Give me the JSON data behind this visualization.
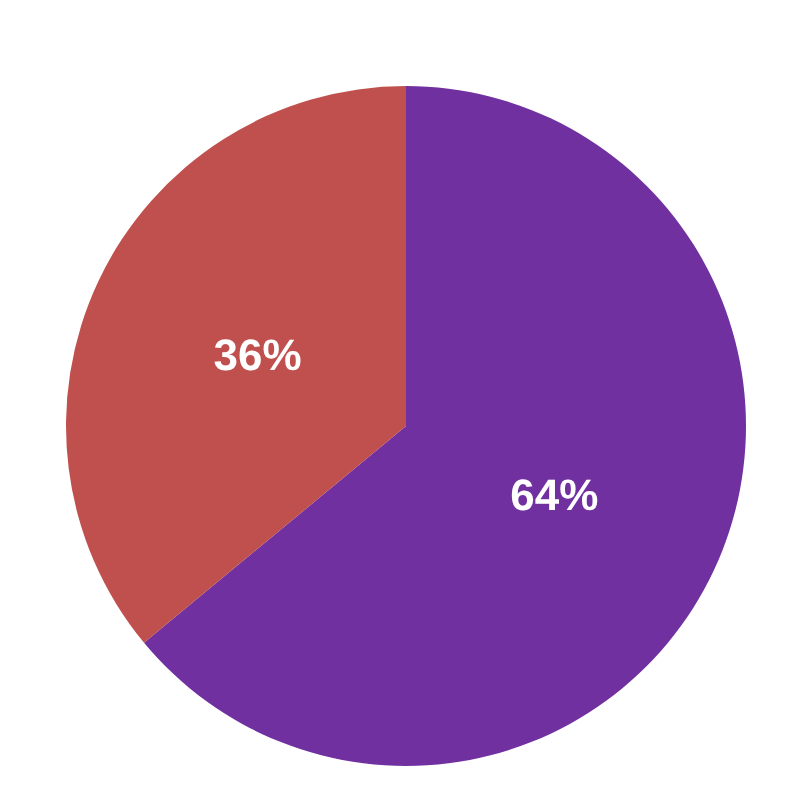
{
  "chart_data": {
    "type": "pie",
    "categories": [
      null,
      null
    ],
    "values": [
      64,
      36
    ],
    "colors": [
      "#7030a0",
      "#c0504d"
    ],
    "value_labels": [
      "64%",
      "36%"
    ]
  }
}
